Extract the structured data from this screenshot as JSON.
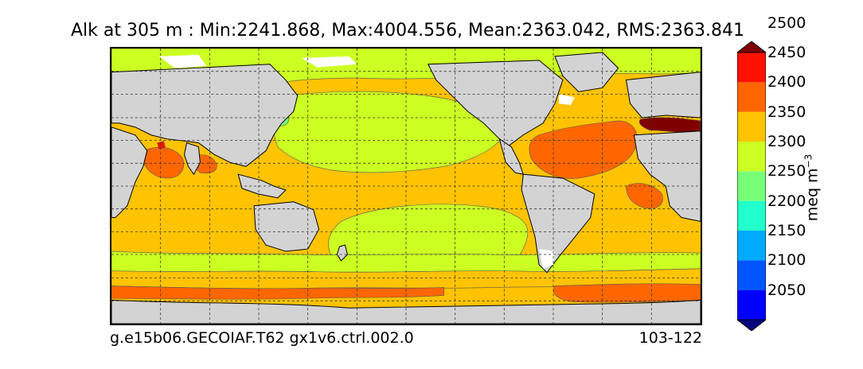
{
  "title": "Alk at 305 m : Min:2241.868, Max:4004.556, Mean:2363.042, RMS:2363.841",
  "footer": {
    "left": "g.e15b06.GECOIAF.T62 gx1v6.ctrl.002.0",
    "right": "103-122"
  },
  "colorbar": {
    "units_base": "meq m",
    "units_exp": "−3",
    "levels": [
      "2050",
      "2100",
      "2150",
      "2200",
      "2250",
      "2300",
      "2350",
      "2400",
      "2450",
      "2500"
    ],
    "colors": [
      "#00007f",
      "#0000ff",
      "#0055ff",
      "#00aaff",
      "#22ffcc",
      "#77ff77",
      "#ccff22",
      "#ffc300",
      "#ff6600",
      "#ff1100",
      "#7f0000"
    ],
    "extend": "both"
  },
  "map": {
    "variable": "Alk",
    "depth_label": "305 m",
    "land_color": "#d3d3d3",
    "ice_color": "#ffffff",
    "gridlines": "dashed",
    "projection": "cylindrical"
  }
}
